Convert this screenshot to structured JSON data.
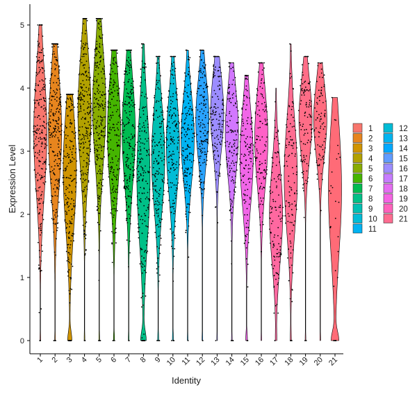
{
  "chart_data": {
    "type": "violin",
    "title": "",
    "xlabel": "Identity",
    "ylabel": "Expression Level",
    "ylim": [
      -0.2,
      5.25
    ],
    "yticks": [
      0,
      1,
      2,
      3,
      4,
      5
    ],
    "grid": false,
    "legend_position": "right",
    "categories": [
      "1",
      "2",
      "3",
      "4",
      "5",
      "6",
      "7",
      "8",
      "9",
      "10",
      "11",
      "12",
      "13",
      "14",
      "15",
      "16",
      "17",
      "18",
      "19",
      "20",
      "21"
    ],
    "colors": [
      "#F8766D",
      "#E7851E",
      "#D09400",
      "#B2A100",
      "#89AC00",
      "#45B500",
      "#00BC51",
      "#00C087",
      "#00C0B2",
      "#00BCD6",
      "#00B3F2",
      "#29A3FF",
      "#9C8DFF",
      "#D277FF",
      "#F166E8",
      "#FF61C7",
      "#FF68A0",
      "#FF6C91",
      "#FF6D87",
      "#FF6C7F",
      "#FF6B77"
    ],
    "legend_colors": [
      "#F8766D",
      "#E7851E",
      "#D09400",
      "#B2A100",
      "#89AC00",
      "#45B500",
      "#00BC51",
      "#00C087",
      "#00C0B2",
      "#00BCD6",
      "#00B3F2",
      "#00BCD6",
      "#00B4F0",
      "#00A9FF",
      "#619CFF",
      "#9D8DFF",
      "#C77CFF",
      "#E56DF2",
      "#F564E3",
      "#FF62BC",
      "#FF6C91"
    ],
    "series": [
      {
        "name": "1",
        "median": 3.3,
        "low": 1.6,
        "high": 4.7,
        "max": 5.0,
        "zero_frac": 0.02,
        "n": 260
      },
      {
        "name": "2",
        "median": 3.3,
        "low": 1.7,
        "high": 4.6,
        "max": 4.7,
        "zero_frac": 0.02,
        "n": 260
      },
      {
        "name": "3",
        "median": 2.7,
        "low": 0.9,
        "high": 3.9,
        "max": 3.9,
        "zero_frac": 0.12,
        "n": 240
      },
      {
        "name": "4",
        "median": 3.6,
        "low": 2.0,
        "high": 4.9,
        "max": 5.1,
        "zero_frac": 0.02,
        "n": 260
      },
      {
        "name": "5",
        "median": 3.7,
        "low": 2.1,
        "high": 5.0,
        "max": 5.1,
        "zero_frac": 0.02,
        "n": 260
      },
      {
        "name": "6",
        "median": 3.3,
        "low": 1.8,
        "high": 4.6,
        "max": 4.6,
        "zero_frac": 0.03,
        "n": 220
      },
      {
        "name": "7",
        "median": 3.3,
        "low": 1.9,
        "high": 4.6,
        "max": 4.6,
        "zero_frac": 0.02,
        "n": 220
      },
      {
        "name": "8",
        "median": 2.6,
        "low": 0.5,
        "high": 3.8,
        "max": 4.7,
        "zero_frac": 0.15,
        "n": 220
      },
      {
        "name": "9",
        "median": 2.9,
        "low": 1.6,
        "high": 4.2,
        "max": 4.5,
        "zero_frac": 0.03,
        "n": 190
      },
      {
        "name": "10",
        "median": 3.1,
        "low": 1.8,
        "high": 4.3,
        "max": 4.5,
        "zero_frac": 0.03,
        "n": 180
      },
      {
        "name": "11",
        "median": 3.2,
        "low": 2.1,
        "high": 4.3,
        "max": 4.6,
        "zero_frac": 0.02,
        "n": 170
      },
      {
        "name": "12",
        "median": 3.5,
        "low": 2.3,
        "high": 4.4,
        "max": 4.6,
        "zero_frac": 0.02,
        "n": 160
      },
      {
        "name": "13",
        "median": 3.6,
        "low": 2.5,
        "high": 4.5,
        "max": 4.5,
        "zero_frac": 0.02,
        "n": 150
      },
      {
        "name": "14",
        "median": 3.3,
        "low": 2.1,
        "high": 4.3,
        "max": 4.4,
        "zero_frac": 0.02,
        "n": 150
      },
      {
        "name": "15",
        "median": 2.9,
        "low": 1.5,
        "high": 4.0,
        "max": 4.2,
        "zero_frac": 0.05,
        "n": 140
      },
      {
        "name": "16",
        "median": 3.2,
        "low": 1.9,
        "high": 4.3,
        "max": 4.4,
        "zero_frac": 0.02,
        "n": 130
      },
      {
        "name": "17",
        "median": 2.0,
        "low": 0.9,
        "high": 3.4,
        "max": 4.0,
        "zero_frac": 0.03,
        "n": 120
      },
      {
        "name": "18",
        "median": 2.6,
        "low": 1.4,
        "high": 4.2,
        "max": 4.7,
        "zero_frac": 0.03,
        "n": 120
      },
      {
        "name": "19",
        "median": 3.5,
        "low": 2.4,
        "high": 4.4,
        "max": 4.5,
        "zero_frac": 0.02,
        "n": 110
      },
      {
        "name": "20",
        "median": 3.5,
        "low": 2.5,
        "high": 4.4,
        "max": 4.4,
        "zero_frac": 0.02,
        "n": 90
      },
      {
        "name": "21",
        "median": 2.4,
        "low": 0.5,
        "high": 3.8,
        "max": 3.85,
        "zero_frac": 0.2,
        "n": 30
      }
    ]
  }
}
